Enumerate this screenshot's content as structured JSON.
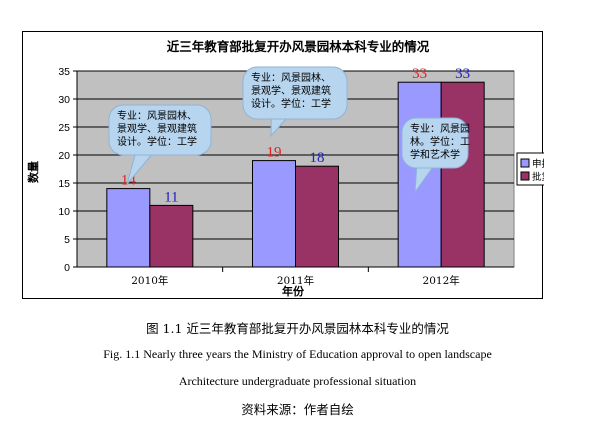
{
  "chart_data": {
    "type": "bar",
    "title": "近三年教育部批复开办风景园林本科专业的情况",
    "xlabel": "年份",
    "ylabel": "数量",
    "ylim": [
      0,
      35
    ],
    "yticks": [
      0,
      5,
      10,
      15,
      20,
      25,
      30,
      35
    ],
    "grid": true,
    "legend_position": "right",
    "categories": [
      "2010年",
      "2011年",
      "2012年"
    ],
    "series": [
      {
        "name": "申报数量",
        "values": [
          14,
          19,
          33
        ],
        "color": "#9999ff",
        "label_color": "#e02020"
      },
      {
        "name": "批复数量",
        "values": [
          11,
          18,
          33
        ],
        "color": "#993366",
        "label_color": "#2020c0"
      }
    ],
    "annotations": [
      {
        "category": "2010年",
        "lines": [
          "专业：风景园林、",
          "景观学、景观建筑",
          "设计。学位：工学"
        ]
      },
      {
        "category": "2011年",
        "lines": [
          "专业：风景园林、",
          "景观学、景观建筑",
          "设计。学位：工学"
        ]
      },
      {
        "category": "2012年",
        "lines": [
          "专业：风景园",
          "林。学位：工",
          "学和艺术学"
        ]
      }
    ]
  },
  "caption": {
    "cn": "图 1.1  近三年教育部批复开办风景园林本科专业的情况",
    "en_line1": "Fig. 1.1 Nearly three years the Ministry of Education approval to open landscape",
    "en_line2": "Architecture undergraduate professional situation",
    "source": "资料来源：作者自绘"
  },
  "colors": {
    "plot_background": "#c0c0c0",
    "callout_fill": "#b7d5ee",
    "callout_border": "#8fb3d6"
  }
}
